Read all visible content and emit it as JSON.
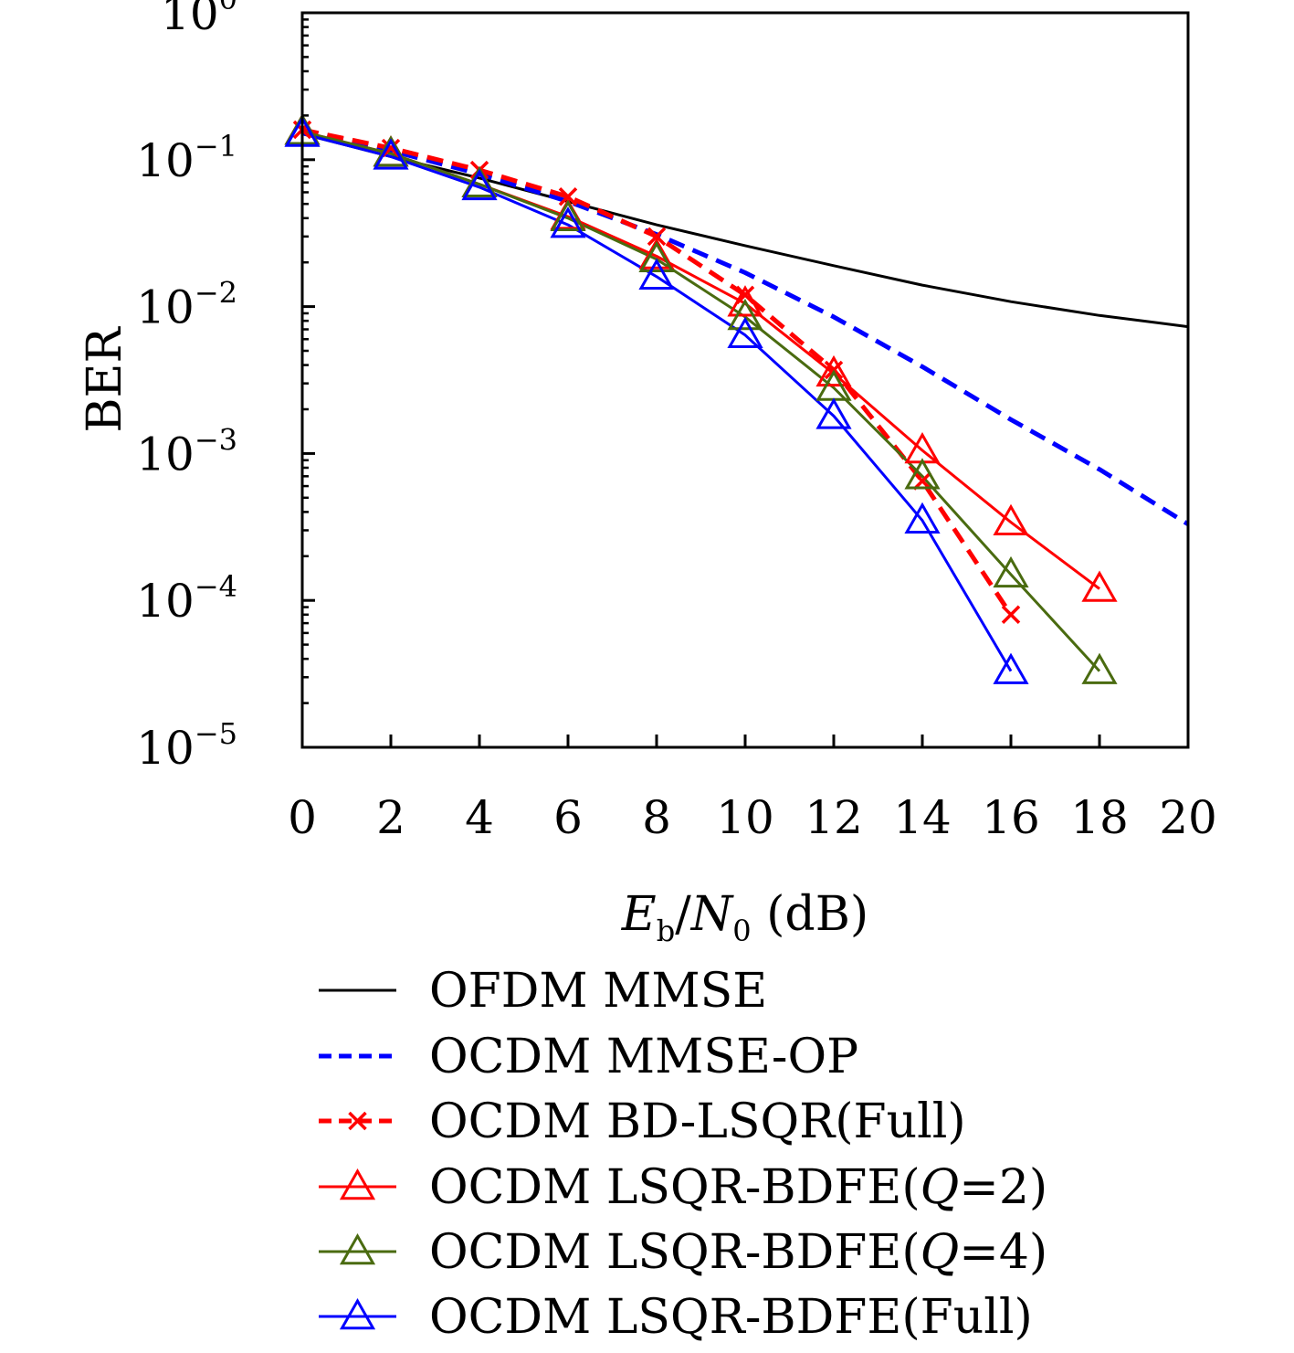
{
  "chart_data": {
    "type": "line",
    "xlabel": "E_b/N_0 (dB)",
    "ylabel": "BER",
    "xlim": [
      0,
      20
    ],
    "ylim": [
      1e-05,
      1
    ],
    "yscale": "log",
    "x_ticks": [
      "0",
      "2",
      "4",
      "6",
      "8",
      "10",
      "12",
      "14",
      "16",
      "18",
      "20"
    ],
    "y_ticks": [
      {
        "base": "10",
        "exp": "0"
      },
      {
        "base": "10",
        "exp": "−1"
      },
      {
        "base": "10",
        "exp": "−2"
      },
      {
        "base": "10",
        "exp": "−3"
      },
      {
        "base": "10",
        "exp": "−4"
      },
      {
        "base": "10",
        "exp": "−5"
      }
    ],
    "grid": false,
    "legend_position": "bottom",
    "series": [
      {
        "name": "OFDM MMSE",
        "color": "#000000",
        "style": "solid",
        "marker": "none",
        "x": [
          0,
          2,
          4,
          6,
          8,
          10,
          12,
          14,
          16,
          18,
          20
        ],
        "y": [
          0.15,
          0.105,
          0.075,
          0.052,
          0.036,
          0.026,
          0.019,
          0.014,
          0.0108,
          0.0087,
          0.0073
        ]
      },
      {
        "name": "OCDM MMSE-OP",
        "color": "#0000ff",
        "style": "dashed",
        "marker": "none",
        "x": [
          0,
          2,
          4,
          6,
          8,
          10,
          12,
          14,
          16,
          18,
          20
        ],
        "y": [
          0.16,
          0.115,
          0.08,
          0.052,
          0.031,
          0.017,
          0.0085,
          0.0039,
          0.0017,
          0.00078,
          0.00033
        ]
      },
      {
        "name": "OCDM BD-LSQR(Full)",
        "color": "#ff0000",
        "style": "dashed",
        "marker": "x",
        "x": [
          0,
          2,
          4,
          6,
          8,
          10,
          12,
          14,
          16
        ],
        "y": [
          0.16,
          0.12,
          0.085,
          0.056,
          0.03,
          0.012,
          0.0037,
          0.00065,
          8e-05
        ]
      },
      {
        "name": "OCDM LSQR-BDFE(",
        "name_q": "Q",
        "name_rest": "=2)",
        "color": "#ff0000",
        "style": "solid",
        "marker": "triangle",
        "x": [
          0,
          2,
          4,
          6,
          8,
          10,
          12,
          14,
          16,
          18
        ],
        "y": [
          0.155,
          0.11,
          0.068,
          0.041,
          0.022,
          0.0105,
          0.0035,
          0.00105,
          0.00034,
          0.00012
        ]
      },
      {
        "name": "OCDM LSQR-BDFE(",
        "name_q": "Q",
        "name_rest": "=4)",
        "color": "#4a6b10",
        "style": "solid",
        "marker": "triangle",
        "x": [
          0,
          2,
          4,
          6,
          8,
          10,
          12,
          14,
          16,
          18
        ],
        "y": [
          0.155,
          0.11,
          0.068,
          0.04,
          0.021,
          0.0085,
          0.0028,
          0.0007,
          0.00015,
          3.3e-05
        ]
      },
      {
        "name": "OCDM LSQR-BDFE(Full)",
        "color": "#0000ff",
        "style": "solid",
        "marker": "triangle",
        "x": [
          0,
          2,
          4,
          6,
          8,
          10,
          12,
          14,
          16
        ],
        "y": [
          0.15,
          0.105,
          0.065,
          0.036,
          0.016,
          0.0064,
          0.0018,
          0.00035,
          3.3e-05
        ]
      }
    ]
  }
}
